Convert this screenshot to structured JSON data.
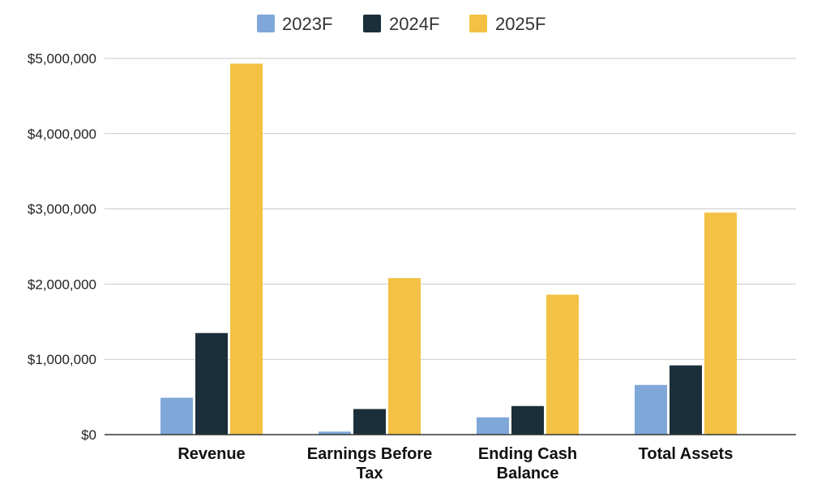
{
  "chart_data": {
    "type": "bar",
    "title": "",
    "xlabel": "",
    "ylabel": "",
    "categories": [
      [
        "Revenue"
      ],
      [
        "Earnings Before",
        "Tax"
      ],
      [
        "Ending Cash",
        "Balance"
      ],
      [
        "Total Assets"
      ]
    ],
    "series": [
      {
        "name": "2023F",
        "color": "#7fa7d8",
        "values": [
          490000,
          40000,
          230000,
          660000
        ]
      },
      {
        "name": "2024F",
        "color": "#1b2f3a",
        "values": [
          1350000,
          340000,
          380000,
          920000
        ]
      },
      {
        "name": "2025F",
        "color": "#f3c143",
        "values": [
          4930000,
          2080000,
          1860000,
          2950000
        ]
      }
    ],
    "ylim": [
      0,
      5000000
    ],
    "yticks": [
      0,
      1000000,
      2000000,
      3000000,
      4000000,
      5000000
    ],
    "ytick_labels": [
      "$0",
      "$1,000,000",
      "$2,000,000",
      "$3,000,000",
      "$4,000,000",
      "$5,000,000"
    ],
    "grid": true,
    "legend_position": "top-center"
  }
}
